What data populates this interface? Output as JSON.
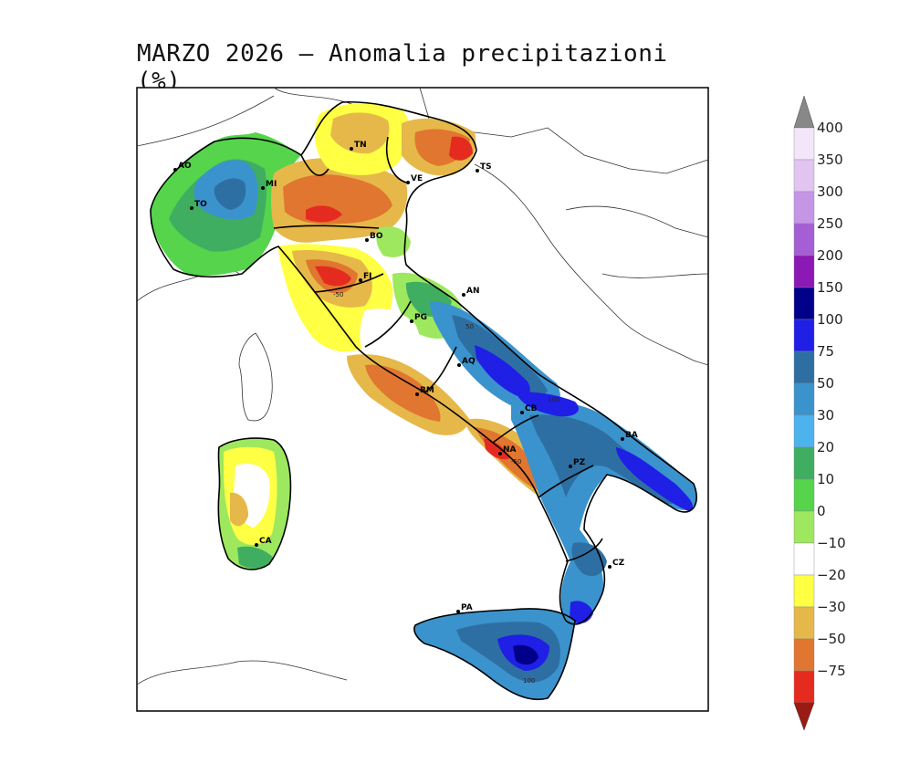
{
  "title": "MARZO 2026 — Anomalia precipitazioni (%)",
  "cities": [
    {
      "code": "AO"
    },
    {
      "code": "TO"
    },
    {
      "code": "MI"
    },
    {
      "code": "TN"
    },
    {
      "code": "VE"
    },
    {
      "code": "TS"
    },
    {
      "code": "BO"
    },
    {
      "code": "FI"
    },
    {
      "code": "AN"
    },
    {
      "code": "PG"
    },
    {
      "code": "AQ"
    },
    {
      "code": "RM"
    },
    {
      "code": "CB"
    },
    {
      "code": "NA"
    },
    {
      "code": "BA"
    },
    {
      "code": "PZ"
    },
    {
      "code": "CZ"
    },
    {
      "code": "PA"
    },
    {
      "code": "CA"
    }
  ],
  "colorbar": {
    "levels": [
      "400",
      "350",
      "300",
      "250",
      "200",
      "150",
      "100",
      "75",
      "50",
      "30",
      "20",
      "10",
      "0",
      "−10",
      "−20",
      "−30",
      "−50",
      "−75"
    ],
    "colors": [
      "#888888",
      "#f3e6fa",
      "#e2c4f1",
      "#c596e6",
      "#a55ed3",
      "#8c18b6",
      "#00008b",
      "#1f1fe6",
      "#2e6fa3",
      "#3b93cd",
      "#4db3ef",
      "#3fae60",
      "#55d44c",
      "#9de85e",
      "#ffffff",
      "#ffff44",
      "#e6b84a",
      "#e0762f",
      "#e52b1f",
      "#9a1a14"
    ]
  },
  "contour_labels": [
    "-50",
    "50",
    "100",
    "-50",
    "100"
  ]
}
